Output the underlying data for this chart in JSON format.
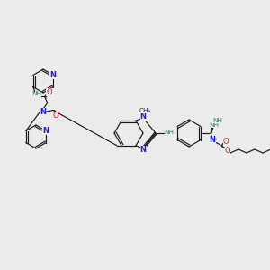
{
  "bg_color": "#ebebeb",
  "bond_color": "#1a1a1a",
  "N_color": "#2020dd",
  "O_color": "#dd2020",
  "NH_color": "#2a7a7a",
  "figsize": [
    3.0,
    3.0
  ],
  "dpi": 100,
  "xlim": [
    0,
    300
  ],
  "ylim": [
    0,
    300
  ]
}
